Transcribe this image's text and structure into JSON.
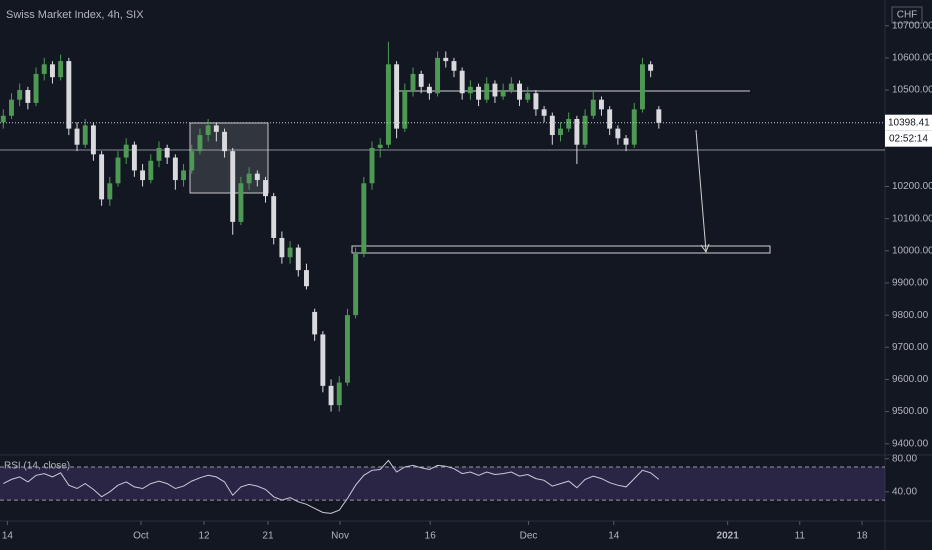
{
  "chart_data": {
    "type": "candlestick",
    "title": "Swiss Market Index, 4h, SIX",
    "currency": "CHF",
    "x": [
      0,
      1,
      2,
      3,
      4,
      5,
      6,
      7,
      8,
      9,
      10,
      11,
      12,
      13,
      14,
      15,
      16,
      17,
      18,
      19,
      20,
      21,
      22,
      23,
      24,
      25,
      26,
      27,
      28,
      29,
      30,
      31,
      32,
      33,
      34,
      35,
      36,
      37,
      38,
      39,
      40,
      41,
      42,
      43,
      44,
      45,
      46,
      47,
      48,
      49,
      50,
      51,
      52,
      53,
      54,
      55,
      56,
      57,
      58,
      59,
      60,
      61,
      62,
      63,
      64,
      65,
      66,
      67,
      68,
      69,
      70,
      71,
      72,
      73,
      74,
      75,
      76,
      77,
      78,
      79,
      80
    ],
    "ohlc": [
      [
        10400,
        10440,
        10380,
        10420
      ],
      [
        10420,
        10490,
        10410,
        10470
      ],
      [
        10470,
        10520,
        10450,
        10500
      ],
      [
        10500,
        10510,
        10440,
        10460
      ],
      [
        10460,
        10570,
        10450,
        10550
      ],
      [
        10550,
        10600,
        10530,
        10580
      ],
      [
        10580,
        10590,
        10520,
        10540
      ],
      [
        10540,
        10610,
        10530,
        10590
      ],
      [
        10590,
        10600,
        10360,
        10380
      ],
      [
        10380,
        10400,
        10310,
        10330
      ],
      [
        10330,
        10410,
        10320,
        10390
      ],
      [
        10390,
        10400,
        10280,
        10300
      ],
      [
        10300,
        10310,
        10140,
        10160
      ],
      [
        10160,
        10230,
        10140,
        10210
      ],
      [
        10210,
        10310,
        10200,
        10290
      ],
      [
        10290,
        10350,
        10270,
        10330
      ],
      [
        10330,
        10340,
        10230,
        10250
      ],
      [
        10250,
        10270,
        10200,
        10220
      ],
      [
        10220,
        10300,
        10210,
        10280
      ],
      [
        10280,
        10340,
        10260,
        10320
      ],
      [
        10320,
        10330,
        10270,
        10290
      ],
      [
        10290,
        10300,
        10190,
        10220
      ],
      [
        10220,
        10270,
        10200,
        10250
      ],
      [
        10250,
        10330,
        10240,
        10310
      ],
      [
        10310,
        10380,
        10300,
        10360
      ],
      [
        10360,
        10410,
        10340,
        10390
      ],
      [
        10390,
        10400,
        10340,
        10370
      ],
      [
        10370,
        10380,
        10290,
        10310
      ],
      [
        10310,
        10320,
        10050,
        10090
      ],
      [
        10090,
        10230,
        10080,
        10210
      ],
      [
        10210,
        10260,
        10190,
        10240
      ],
      [
        10240,
        10250,
        10200,
        10220
      ],
      [
        10220,
        10230,
        10150,
        10170
      ],
      [
        10170,
        10180,
        10020,
        10040
      ],
      [
        10040,
        10060,
        9960,
        9980
      ],
      [
        9980,
        10030,
        9960,
        10010
      ],
      [
        10010,
        10020,
        9920,
        9940
      ],
      [
        9940,
        9960,
        9880,
        9890
      ],
      [
        9810,
        9820,
        9720,
        9740
      ],
      [
        9740,
        9750,
        9560,
        9580
      ],
      [
        9580,
        9600,
        9500,
        9520
      ],
      [
        9520,
        9610,
        9500,
        9590
      ],
      [
        9590,
        9820,
        9580,
        9800
      ],
      [
        9800,
        10010,
        9790,
        9990
      ],
      [
        9990,
        10230,
        9980,
        10210
      ],
      [
        10210,
        10340,
        10190,
        10320
      ],
      [
        10320,
        10350,
        10290,
        10330
      ],
      [
        10330,
        10650,
        10320,
        10580
      ],
      [
        10580,
        10590,
        10350,
        10380
      ],
      [
        10380,
        10520,
        10370,
        10500
      ],
      [
        10500,
        10570,
        10480,
        10550
      ],
      [
        10550,
        10560,
        10490,
        10510
      ],
      [
        10510,
        10520,
        10470,
        10490
      ],
      [
        10490,
        10620,
        10480,
        10600
      ],
      [
        10600,
        10620,
        10570,
        10590
      ],
      [
        10590,
        10600,
        10540,
        10560
      ],
      [
        10560,
        10570,
        10470,
        10490
      ],
      [
        10490,
        10530,
        10470,
        10510
      ],
      [
        10510,
        10520,
        10450,
        10470
      ],
      [
        10470,
        10540,
        10460,
        10520
      ],
      [
        10520,
        10530,
        10460,
        10480
      ],
      [
        10480,
        10520,
        10470,
        10500
      ],
      [
        10500,
        10540,
        10490,
        10520
      ],
      [
        10520,
        10530,
        10450,
        10470
      ],
      [
        10470,
        10510,
        10460,
        10490
      ],
      [
        10490,
        10500,
        10420,
        10440
      ],
      [
        10440,
        10450,
        10400,
        10420
      ],
      [
        10420,
        10430,
        10330,
        10360
      ],
      [
        10360,
        10400,
        10340,
        10380
      ],
      [
        10380,
        10430,
        10370,
        10410
      ],
      [
        10410,
        10420,
        10270,
        10330
      ],
      [
        10330,
        10440,
        10320,
        10420
      ],
      [
        10420,
        10500,
        10410,
        10470
      ],
      [
        10470,
        10480,
        10420,
        10440
      ],
      [
        10440,
        10450,
        10360,
        10380
      ],
      [
        10380,
        10390,
        10330,
        10350
      ],
      [
        10350,
        10360,
        10310,
        10330
      ],
      [
        10330,
        10460,
        10320,
        10440
      ],
      [
        10440,
        10600,
        10430,
        10580
      ],
      [
        10580,
        10590,
        10540,
        10560
      ],
      [
        10440,
        10450,
        10380,
        10398.41
      ]
    ],
    "up_color": "#4e9a55",
    "down_color": "#d9d9de",
    "xlim": [
      -0.4,
      107.6
    ],
    "xticks": [
      {
        "value": 0.5,
        "label": "14"
      },
      {
        "value": 16.8,
        "label": "Oct"
      },
      {
        "value": 24.5,
        "label": "12"
      },
      {
        "value": 32.3,
        "label": "21"
      },
      {
        "value": 41.1,
        "label": "Nov"
      },
      {
        "value": 52.1,
        "label": "16"
      },
      {
        "value": 64.1,
        "label": "Dec"
      },
      {
        "value": 74.5,
        "label": "14"
      },
      {
        "value": 88.4,
        "label": "2021"
      },
      {
        "value": 97.2,
        "label": "11"
      },
      {
        "value": 104.8,
        "label": "18"
      }
    ],
    "ylim": [
      9365,
      10780
    ],
    "yticks": [
      {
        "value": 9400,
        "label": "9400.00"
      },
      {
        "value": 9500,
        "label": "9500.00"
      },
      {
        "value": 9600,
        "label": "9600.00"
      },
      {
        "value": 9700,
        "label": "9700.00"
      },
      {
        "value": 9800,
        "label": "9800.00"
      },
      {
        "value": 9900,
        "label": "9900.00"
      },
      {
        "value": 10000,
        "label": "10000.00"
      },
      {
        "value": 10100,
        "label": "10100.00"
      },
      {
        "value": 10200,
        "label": "10200.00"
      },
      {
        "value": 10500,
        "label": "10500.00"
      },
      {
        "value": 10600,
        "label": "10600.00"
      },
      {
        "value": 10700,
        "label": "10700.00"
      }
    ],
    "last_price": 10398.41,
    "countdown": "02:52:14",
    "rsi": {
      "name": "RSI (14, close)",
      "color": "#c9c9d6",
      "ylim": [
        6,
        84.5
      ],
      "levels": [
        30,
        70
      ],
      "yticks": [
        {
          "value": 80,
          "label": "80.00"
        },
        {
          "value": 40,
          "label": "40.00"
        }
      ],
      "values": [
        50,
        55,
        58,
        52,
        60,
        62,
        58,
        63,
        48,
        44,
        50,
        43,
        34,
        40,
        48,
        52,
        46,
        44,
        50,
        53,
        50,
        44,
        47,
        53,
        57,
        60,
        58,
        52,
        36,
        46,
        49,
        47,
        43,
        34,
        30,
        33,
        28,
        25,
        20,
        15,
        14,
        18,
        32,
        48,
        60,
        66,
        67,
        78,
        64,
        70,
        72,
        69,
        67,
        72,
        71,
        68,
        62,
        64,
        60,
        64,
        61,
        62,
        64,
        59,
        61,
        56,
        54,
        47,
        50,
        53,
        45,
        55,
        59,
        56,
        51,
        48,
        46,
        56,
        66,
        63,
        55
      ]
    }
  }
}
